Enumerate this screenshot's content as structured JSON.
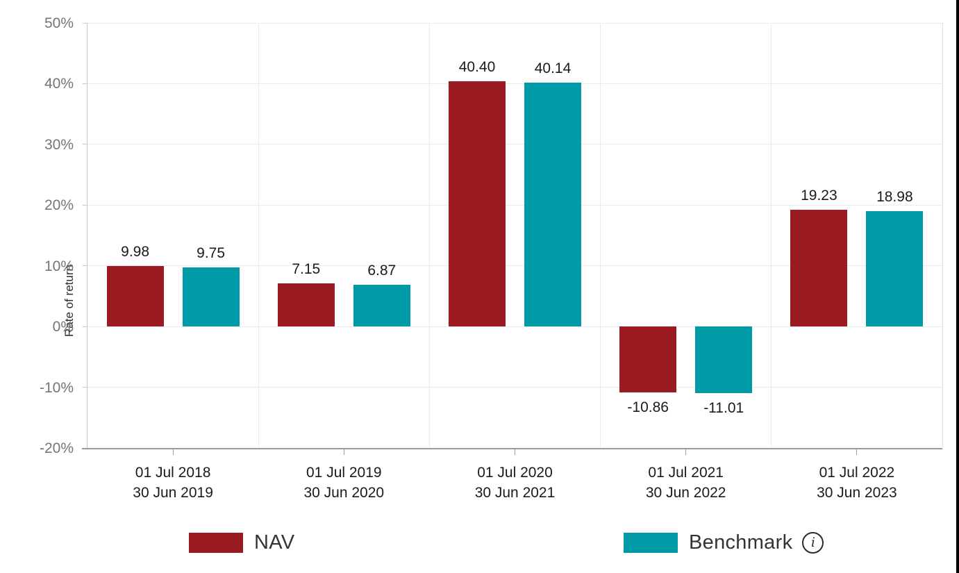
{
  "chart_data": {
    "type": "bar",
    "title": "",
    "xlabel": "",
    "ylabel": "Rate of return",
    "ylim": [
      -20,
      50
    ],
    "grid": true,
    "legend_position": "bottom",
    "y_ticks": [
      {
        "value": 50,
        "label": "50%"
      },
      {
        "value": 40,
        "label": "40%"
      },
      {
        "value": 30,
        "label": "30%"
      },
      {
        "value": 20,
        "label": "20%"
      },
      {
        "value": 10,
        "label": "10%"
      },
      {
        "value": 0,
        "label": "0%"
      },
      {
        "value": -10,
        "label": "-10%"
      },
      {
        "value": -20,
        "label": "-20%"
      }
    ],
    "categories": [
      {
        "line1": "01 Jul 2018",
        "line2": "30 Jun 2019"
      },
      {
        "line1": "01 Jul 2019",
        "line2": "30 Jun 2020"
      },
      {
        "line1": "01 Jul 2020",
        "line2": "30 Jun 2021"
      },
      {
        "line1": "01 Jul 2021",
        "line2": "30 Jun 2022"
      },
      {
        "line1": "01 Jul 2022",
        "line2": "30 Jun 2023"
      }
    ],
    "series": [
      {
        "name": "NAV",
        "color": "#9b1b23",
        "values": [
          9.98,
          7.15,
          40.4,
          -10.86,
          19.23
        ]
      },
      {
        "name": "Benchmark",
        "color": "#009aa6",
        "values": [
          9.75,
          6.87,
          40.14,
          -11.01,
          18.98
        ]
      }
    ],
    "value_label_decimals": 2
  },
  "legend": {
    "nav_label": "NAV",
    "benchmark_label": "Benchmark",
    "info_icon_glyph": "i"
  }
}
